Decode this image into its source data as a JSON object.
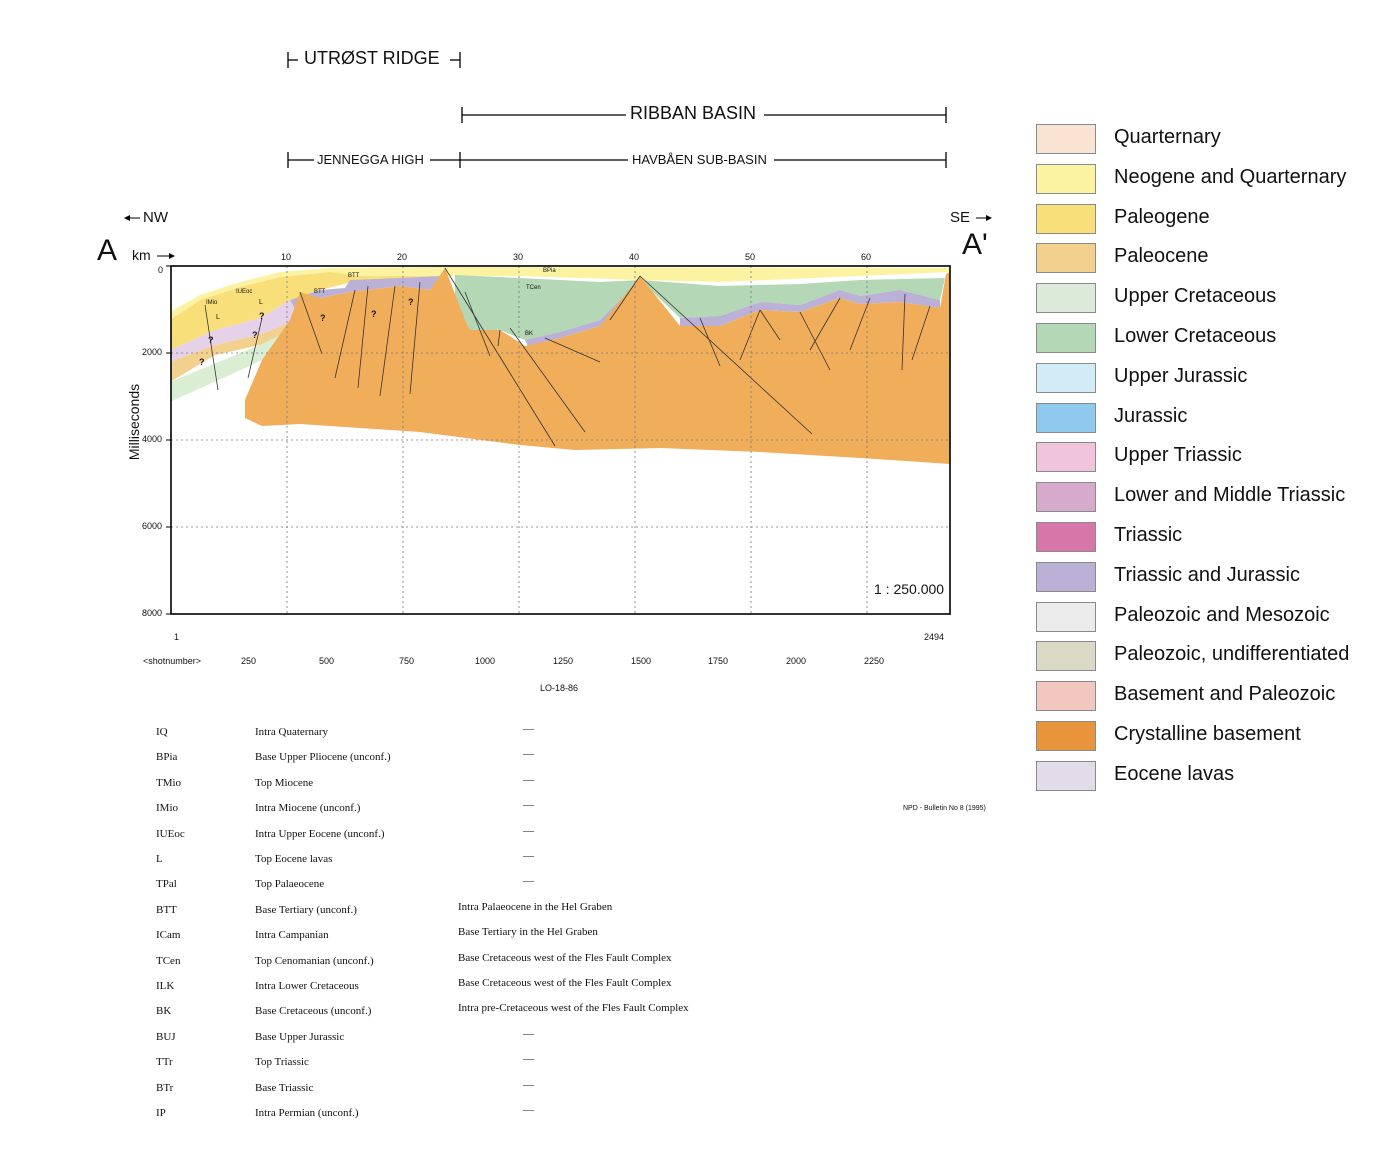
{
  "headers": {
    "utrost": "UTRØST RIDGE",
    "ribban": "RIBBAN BASIN",
    "jennegga": "JENNEGGA HIGH",
    "havbaen": "HAVBÅEN SUB-BASIN",
    "nw": "NW",
    "se": "SE",
    "a_left": "A",
    "a_right": "A'",
    "km": "km"
  },
  "section": {
    "ylabel": "Milliseconds",
    "km_ticks": [
      "10",
      "20",
      "30",
      "40",
      "50",
      "60"
    ],
    "ms_ticks": [
      "0",
      "2000",
      "4000",
      "6000",
      "8000"
    ],
    "scale": "1 : 250.000",
    "shot_first": "1",
    "shot_last": "2494",
    "shot_label": "<shotnumber>",
    "shot_ticks": [
      "250",
      "500",
      "750",
      "1000",
      "1250",
      "1500",
      "1750",
      "2000",
      "2250"
    ],
    "line_name": "LO-18-86",
    "source": "NPD - Bulletin No 8 (1995)",
    "inline_labels": {
      "bpia": "BPia",
      "tcen": "TCen",
      "bk": "BK",
      "btt1": "BTT",
      "btt2": "BTT",
      "iueoc": "IUEoc",
      "mio": "IMio",
      "l1": "L",
      "l2": "L",
      "q": "?"
    }
  },
  "legend": [
    {
      "label": "Quarternary",
      "color": "#f9e4d4"
    },
    {
      "label": "Neogene and Quarternary",
      "color": "#fbf3a2"
    },
    {
      "label": "Paleogene",
      "color": "#f9df7a"
    },
    {
      "label": "Paleocene",
      "color": "#f2d08e"
    },
    {
      "label": "Upper Cretaceous",
      "color": "#dcebd9"
    },
    {
      "label": "Lower Cretaceous",
      "color": "#b4d7b5"
    },
    {
      "label": "Upper Jurassic",
      "color": "#d2ecf7"
    },
    {
      "label": "Jurassic",
      "color": "#8fcaee"
    },
    {
      "label": "Upper Triassic",
      "color": "#efc4dc"
    },
    {
      "label": "Lower and Middle Triassic",
      "color": "#d5aacb"
    },
    {
      "label": "Triassic",
      "color": "#d776a8"
    },
    {
      "label": "Triassic and Jurassic",
      "color": "#bbb1d6"
    },
    {
      "label": "Paleozoic and Mesozoic",
      "color": "#ebebeb"
    },
    {
      "label": "Paleozoic, undifferentiated",
      "color": "#d9d9c6"
    },
    {
      "label": "Basement and Paleozoic",
      "color": "#f2c7c0"
    },
    {
      "label": "Crystalline basement",
      "color": "#e8943c"
    },
    {
      "label": "Eocene lavas",
      "color": "#e2dbea"
    }
  ],
  "horizons": [
    {
      "code": "IQ",
      "name": "Intra Quaternary",
      "note": "—"
    },
    {
      "code": "BPia",
      "name": "Base Upper Pliocene (unconf.)",
      "note": "—"
    },
    {
      "code": "TMio",
      "name": "Top Miocene",
      "note": "—"
    },
    {
      "code": "IMio",
      "name": "Intra Miocene (unconf.)",
      "note": "—"
    },
    {
      "code": "IUEoc",
      "name": "Intra Upper Eocene (unconf.)",
      "note": "—"
    },
    {
      "code": "L",
      "name": "Top Eocene lavas",
      "note": "—"
    },
    {
      "code": "TPal",
      "name": "Top Palaeocene",
      "note": "—"
    },
    {
      "code": "BTT",
      "name": "Base Tertiary (unconf.)",
      "note": "Intra Palaeocene in the Hel Graben"
    },
    {
      "code": "ICam",
      "name": "Intra Campanian",
      "note": "Base Tertiary in the Hel Graben"
    },
    {
      "code": "TCen",
      "name": "Top Cenomanian (unconf.)",
      "note": "Base Cretaceous west of the Fles Fault Complex"
    },
    {
      "code": "ILK",
      "name": "Intra Lower Cretaceous",
      "note": "Base Cretaceous west of the Fles Fault Complex"
    },
    {
      "code": "BK",
      "name": "Base Cretaceous (unconf.)",
      "note": "Intra pre-Cretaceous west of the Fles Fault Complex"
    },
    {
      "code": "BUJ",
      "name": "Base Upper Jurassic",
      "note": "—"
    },
    {
      "code": "TTr",
      "name": "Top Triassic",
      "note": "—"
    },
    {
      "code": "BTr",
      "name": "Base Triassic",
      "note": "—"
    },
    {
      "code": "IP",
      "name": "Intra Permian (unconf.)",
      "note": "—"
    }
  ]
}
